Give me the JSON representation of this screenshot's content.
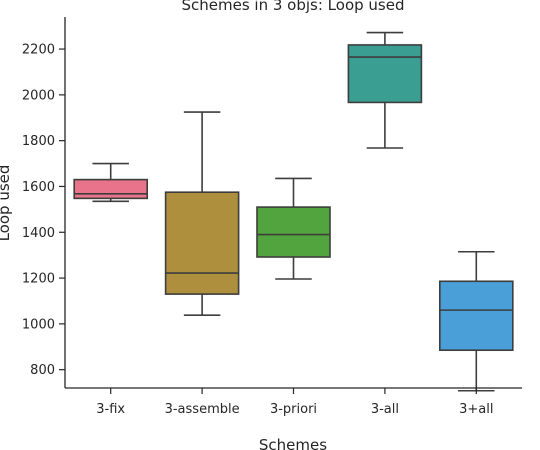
{
  "chart_data": {
    "type": "box",
    "title": "Schemes in 3 objs: Loop used",
    "xlabel": "Schemes",
    "ylabel": "Loop used",
    "ylim": [
      720,
      2340
    ],
    "yticks": [
      800,
      1000,
      1200,
      1400,
      1600,
      1800,
      2000,
      2200
    ],
    "grid": false,
    "categories": [
      "3-fix",
      "3-assemble",
      "3-priori",
      "3-all",
      "3+all"
    ],
    "boxes": [
      {
        "category": "3-fix",
        "whisker_low": 1535,
        "q1": 1548,
        "median": 1568,
        "q3": 1630,
        "whisker_high": 1700,
        "color": "#e8738a"
      },
      {
        "category": "3-assemble",
        "whisker_low": 1038,
        "q1": 1130,
        "median": 1222,
        "q3": 1575,
        "whisker_high": 1925,
        "color": "#ad8f3d"
      },
      {
        "category": "3-priori",
        "whisker_low": 1196,
        "q1": 1292,
        "median": 1390,
        "q3": 1510,
        "whisker_high": 1635,
        "color": "#52a43f"
      },
      {
        "category": "3-all",
        "whisker_low": 1768,
        "q1": 1967,
        "median": 2165,
        "q3": 2218,
        "whisker_high": 2272,
        "color": "#3b9e92"
      },
      {
        "category": "3+all",
        "whisker_low": 708,
        "q1": 885,
        "median": 1060,
        "q3": 1186,
        "whisker_high": 1315,
        "color": "#4a9fd8"
      }
    ]
  }
}
